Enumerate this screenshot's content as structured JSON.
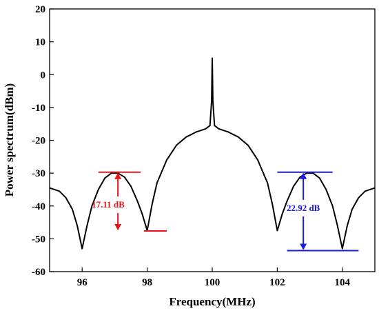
{
  "chart_data": {
    "type": "line",
    "title": "",
    "xlabel": "Frequency(MHz)",
    "ylabel": "Power spectrum(dBm)",
    "xlim": [
      95,
      105
    ],
    "ylim": [
      -60,
      20
    ],
    "xticks": [
      96,
      98,
      100,
      102,
      104
    ],
    "yticks": [
      20,
      10,
      0,
      -10,
      -20,
      -30,
      -40,
      -50,
      -60
    ],
    "grid": false,
    "legend": "none",
    "series": [
      {
        "color": "#000000",
        "x": [
          95.0,
          95.3,
          95.5,
          95.7,
          95.85,
          96.0,
          96.15,
          96.3,
          96.5,
          96.7,
          96.9,
          97.1,
          97.3,
          97.5,
          97.7,
          97.85,
          98.0,
          98.15,
          98.3,
          98.6,
          98.9,
          99.2,
          99.5,
          99.8,
          99.93,
          99.98,
          100.0,
          100.02,
          100.07,
          100.2,
          100.5,
          100.8,
          101.1,
          101.4,
          101.7,
          101.85,
          102.0,
          102.15,
          102.3,
          102.5,
          102.7,
          102.9,
          103.1,
          103.3,
          103.5,
          103.7,
          103.85,
          104.0,
          104.15,
          104.3,
          104.5,
          104.7,
          105.0
        ],
        "y": [
          -34.5,
          -35.5,
          -37.5,
          -41.0,
          -46.0,
          -53.0,
          -46.0,
          -40.0,
          -35.0,
          -31.5,
          -30.0,
          -30.0,
          -31.2,
          -34.0,
          -38.5,
          -42.5,
          -47.5,
          -39.5,
          -33.0,
          -26.0,
          -21.5,
          -19.0,
          -17.5,
          -16.5,
          -15.5,
          -8.0,
          5.0,
          -8.0,
          -15.5,
          -16.5,
          -17.5,
          -19.0,
          -21.5,
          -26.0,
          -33.0,
          -39.5,
          -47.5,
          -42.5,
          -38.5,
          -34.0,
          -31.2,
          -30.0,
          -30.0,
          -31.5,
          -35.0,
          -40.0,
          -46.0,
          -53.0,
          -46.0,
          -41.0,
          -37.5,
          -35.5,
          -34.5
        ]
      }
    ],
    "annotations": [
      {
        "label": "17.11 dB",
        "color": "#e8141a",
        "x_start": 96.6,
        "x_end": 97.9,
        "top_x_start": 96.5,
        "top_x_end": 97.8,
        "top_y": -29.7,
        "bottom_x_start": 97.9,
        "bottom_x_end": 98.6,
        "bottom_y": -47.6,
        "arrow_x": 97.1,
        "label_x": 96.8,
        "label_y": -40.5
      },
      {
        "label": "22.92 dB",
        "color": "#1a1ae0",
        "top_x_start": 102.0,
        "top_x_end": 103.7,
        "top_y": -29.7,
        "bottom_x_start": 102.3,
        "bottom_x_end": 104.5,
        "bottom_y": -53.6,
        "arrow_x": 102.8,
        "label_x": 102.8,
        "label_y": -41.5
      }
    ]
  }
}
